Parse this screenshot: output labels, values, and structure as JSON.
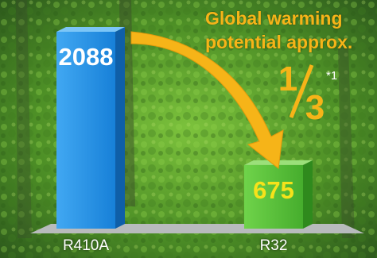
{
  "headline": {
    "line1": "Global warming",
    "line2": "potential approx."
  },
  "fraction": {
    "numerator": "1",
    "denominator": "3",
    "footnote": "*1"
  },
  "colors": {
    "bar_r410a": "#1b8fe6",
    "bar_r32": "#57c23a",
    "accent": "#f6b418",
    "label_text": "#ffffff"
  },
  "chart_data": {
    "type": "bar",
    "categories": [
      "R410A",
      "R32"
    ],
    "values": [
      2088,
      675
    ],
    "data_labels": [
      "2088",
      "675"
    ],
    "title": "",
    "xlabel": "",
    "ylabel": "",
    "ylim": [
      0,
      2088
    ],
    "grid": false,
    "legend": "none",
    "annotation": "arrow from R410A bar to R32 bar"
  }
}
